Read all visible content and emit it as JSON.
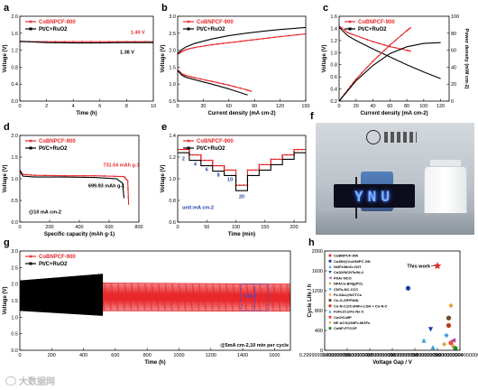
{
  "panels": [
    {
      "id": "a",
      "letter": "a",
      "type": "line",
      "xlabel": "Time (h)",
      "ylabel": "Voltage (V)",
      "xlim": [
        0,
        10
      ],
      "ylim": [
        0,
        2.0
      ],
      "xticks": [
        0,
        2,
        4,
        6,
        8,
        10
      ],
      "yticks": [
        0.0,
        0.4,
        0.8,
        1.2,
        1.6,
        2.0
      ],
      "legend": [
        "CoBNPCF-900",
        "Pt/C+RuO2"
      ],
      "series": [
        {
          "name": "CoBNPCF-900",
          "color": "#e8282b",
          "x": [
            0,
            2,
            4,
            6,
            8,
            10
          ],
          "y": [
            1.4,
            1.4,
            1.4,
            1.4,
            1.4,
            1.4
          ]
        },
        {
          "name": "Pt/C+RuO2",
          "color": "#000000",
          "x": [
            0,
            2,
            4,
            6,
            8,
            10
          ],
          "y": [
            1.41,
            1.38,
            1.37,
            1.37,
            1.38,
            1.38
          ]
        }
      ],
      "annotations": [
        {
          "text": "1.40 V",
          "color": "#e8282b",
          "x": 8.3,
          "y": 1.58
        },
        {
          "text": "1.38 V",
          "color": "#000000",
          "x": 7.5,
          "y": 1.12
        }
      ]
    },
    {
      "id": "b",
      "letter": "b",
      "type": "line",
      "xlabel": "Current density (mA cm-2)",
      "ylabel": "Voltage (V)",
      "xlim": [
        0,
        150
      ],
      "ylim": [
        0.5,
        3.0
      ],
      "xticks": [
        0,
        30,
        60,
        90,
        120,
        150
      ],
      "yticks": [
        0.5,
        1.0,
        1.5,
        2.0,
        2.5,
        3.0
      ],
      "legend": [
        "CoBNPCF-900",
        "Pt/C+RuO2"
      ],
      "series": [
        {
          "name": "CoBNPCF-900 charge",
          "color": "#e8282b",
          "x": [
            0,
            5,
            10,
            20,
            40,
            60,
            80,
            100,
            120,
            150
          ],
          "y": [
            1.88,
            1.96,
            2.02,
            2.08,
            2.16,
            2.22,
            2.28,
            2.34,
            2.4,
            2.48
          ]
        },
        {
          "name": "Pt/C+RuO2 charge",
          "color": "#000000",
          "x": [
            0,
            5,
            10,
            20,
            40,
            60,
            80,
            100,
            120,
            150
          ],
          "y": [
            1.9,
            2.02,
            2.1,
            2.2,
            2.33,
            2.43,
            2.5,
            2.56,
            2.61,
            2.67
          ]
        },
        {
          "name": "CoBNPCF-900 discharge",
          "color": "#e8282b",
          "x": [
            0,
            5,
            10,
            20,
            40,
            60,
            80,
            87
          ],
          "y": [
            1.42,
            1.3,
            1.25,
            1.19,
            1.08,
            0.97,
            0.84,
            0.78
          ]
        },
        {
          "name": "Pt/C+RuO2 discharge",
          "color": "#000000",
          "x": [
            0,
            5,
            10,
            20,
            40,
            60,
            82
          ],
          "y": [
            1.4,
            1.26,
            1.2,
            1.13,
            1.0,
            0.86,
            0.68
          ]
        }
      ]
    },
    {
      "id": "c",
      "letter": "c",
      "type": "line",
      "xlabel": "Current density (mA cm-2)",
      "ylabel": "Voltage (V)",
      "ylabel2": "Power density (mW cm-2)",
      "xlim": [
        0,
        130
      ],
      "ylim": [
        0.2,
        1.6
      ],
      "ylim2": [
        0,
        100
      ],
      "xticks": [
        0,
        20,
        40,
        60,
        80,
        100,
        120
      ],
      "yticks": [
        0.2,
        0.4,
        0.6,
        0.8,
        1.0,
        1.2,
        1.4,
        1.6
      ],
      "yticks2": [
        0,
        20,
        40,
        60,
        80,
        100
      ],
      "legend": [
        "CoBNPCF-900",
        "Pt/C+RuO2"
      ],
      "series": [
        {
          "name": "CoBNPCF-900 voltage",
          "axis": "left",
          "color": "#e8282b",
          "x": [
            0,
            10,
            20,
            40,
            60,
            80,
            85
          ],
          "y": [
            1.44,
            1.33,
            1.28,
            1.18,
            1.1,
            1.04,
            1.02
          ]
        },
        {
          "name": "Pt/C+RuO2 voltage",
          "axis": "left",
          "color": "#000000",
          "x": [
            0,
            10,
            20,
            40,
            60,
            80,
            100,
            120
          ],
          "y": [
            1.42,
            1.28,
            1.2,
            1.06,
            0.93,
            0.8,
            0.68,
            0.57
          ]
        },
        {
          "name": "CoBNPCF-900 power",
          "axis": "right",
          "color": "#e8282b",
          "x": [
            0,
            10,
            20,
            40,
            60,
            80,
            85
          ],
          "y": [
            0,
            13,
            26,
            47,
            66,
            83,
            87
          ]
        },
        {
          "name": "Pt/C+RuO2 power",
          "axis": "right",
          "color": "#000000",
          "x": [
            0,
            10,
            20,
            40,
            60,
            80,
            100,
            120
          ],
          "y": [
            0,
            12,
            24,
            42,
            56,
            64,
            68,
            69
          ]
        }
      ]
    },
    {
      "id": "d",
      "letter": "d",
      "type": "line",
      "xlabel": "Specific capacity (mAh g-1)",
      "ylabel": "Voltage (V)",
      "xlim": [
        0,
        800
      ],
      "ylim": [
        0.0,
        2.0
      ],
      "xticks": [
        0,
        200,
        400,
        600,
        800
      ],
      "yticks": [
        0.0,
        0.5,
        1.0,
        1.5,
        2.0
      ],
      "legend": [
        "CoBNPCF-900",
        "Pt/C+RuO2"
      ],
      "series": [
        {
          "name": "CoBNPCF-900",
          "color": "#e8282b",
          "x": [
            0,
            20,
            100,
            300,
            500,
            700,
            725,
            731
          ],
          "y": [
            1.2,
            1.1,
            1.08,
            1.07,
            1.07,
            1.05,
            0.95,
            0.4
          ]
        },
        {
          "name": "Pt/C+RuO2",
          "color": "#000000",
          "x": [
            0,
            20,
            100,
            300,
            500,
            650,
            690,
            700
          ],
          "y": [
            1.18,
            1.06,
            1.04,
            1.04,
            1.03,
            1.0,
            0.9,
            0.55
          ]
        }
      ],
      "annotations": [
        {
          "text": "731.54 mAh g-1",
          "color": "#e8282b",
          "x": 560,
          "y": 1.28
        },
        {
          "text": "699.93 mAh g-1",
          "color": "#000000",
          "x": 460,
          "y": 0.8
        },
        {
          "text": "@10 mA cm-2",
          "color": "#000000",
          "x": 60,
          "y": 0.2
        }
      ]
    },
    {
      "id": "e",
      "letter": "e",
      "type": "line",
      "xlabel": "Time (min)",
      "ylabel": "Voltage (V)",
      "xlim": [
        0,
        220
      ],
      "ylim": [
        0.6,
        1.4
      ],
      "xticks": [
        0,
        50,
        100,
        150,
        200
      ],
      "yticks": [
        0.6,
        0.8,
        1.0,
        1.2,
        1.4
      ],
      "legend": [
        "CoBNPCF-900",
        "Pt/C+RuO2"
      ],
      "unit_label": "unit:mA cm-2",
      "step_labels": [
        "2",
        "4",
        "6",
        "8",
        "10",
        "20"
      ],
      "series": [
        {
          "name": "CoBNPCF-900",
          "color": "#e8282b",
          "x": [
            0,
            20,
            20,
            40,
            40,
            60,
            60,
            80,
            80,
            100,
            100,
            120,
            120,
            140,
            140,
            160,
            160,
            180,
            180,
            200,
            200,
            220
          ],
          "y": [
            1.27,
            1.27,
            1.22,
            1.22,
            1.17,
            1.17,
            1.12,
            1.12,
            1.08,
            1.08,
            0.94,
            0.94,
            1.08,
            1.08,
            1.13,
            1.13,
            1.18,
            1.18,
            1.22,
            1.22,
            1.27,
            1.27
          ]
        },
        {
          "name": "Pt/C+RuO2",
          "color": "#000000",
          "x": [
            0,
            20,
            20,
            40,
            40,
            60,
            60,
            80,
            80,
            100,
            100,
            120,
            120,
            140,
            140,
            160,
            160,
            180,
            180,
            200,
            200,
            220
          ],
          "y": [
            1.24,
            1.24,
            1.17,
            1.17,
            1.12,
            1.12,
            1.07,
            1.07,
            1.03,
            1.03,
            0.89,
            0.89,
            1.03,
            1.03,
            1.08,
            1.08,
            1.13,
            1.13,
            1.18,
            1.18,
            1.24,
            1.24
          ]
        }
      ]
    },
    {
      "id": "g",
      "letter": "g",
      "type": "line",
      "xlabel": "Time (h)",
      "ylabel": "Voltage (V)",
      "xlim": [
        0,
        1700
      ],
      "ylim": [
        0.0,
        3.0
      ],
      "xticks": [
        0,
        200,
        400,
        600,
        800,
        1000,
        1200,
        1400,
        1600
      ],
      "yticks": [
        0.0,
        0.5,
        1.0,
        1.5,
        2.0,
        2.5,
        3.0
      ],
      "legend": [
        "CoBNPCF-900",
        "Pt/C+RuO2"
      ],
      "condition": "@5mA cm-2,10 min per cycle",
      "inset_label": "0.80 V",
      "series": [
        {
          "name": "CoBNPCF-900 charge",
          "color": "#e8282b",
          "x": [
            0,
            1700
          ],
          "y": [
            2.05,
            2.0
          ]
        },
        {
          "name": "CoBNPCF-900 discharge",
          "color": "#e8282b",
          "x": [
            0,
            1700
          ],
          "y": [
            1.2,
            1.18
          ]
        },
        {
          "name": "Pt/C+RuO2 charge",
          "color": "#000000",
          "x": [
            0,
            520
          ],
          "y": [
            2.1,
            2.3
          ]
        },
        {
          "name": "Pt/C+RuO2 discharge",
          "color": "#000000",
          "x": [
            0,
            520
          ],
          "y": [
            1.2,
            1.05
          ]
        }
      ]
    },
    {
      "id": "h",
      "letter": "h",
      "type": "scatter",
      "xlabel": "Voltage Gap / V",
      "ylabel": "Cycle Life / h",
      "xlim": [
        0.3,
        0.9
      ],
      "ylim": [
        0,
        2000
      ],
      "xticks": [
        0.3,
        0.4,
        0.5,
        0.6,
        0.7,
        0.8,
        0.9
      ],
      "yticks": [
        0,
        400,
        800,
        1200,
        1600,
        2000
      ],
      "callout": "This work",
      "points": [
        {
          "name": "CoBNPCF-900",
          "x": 0.8,
          "y": 1700,
          "color": "#e8282b",
          "marker": "star"
        },
        {
          "name": "Co3Ni@CoON/PC GN",
          "x": 0.67,
          "y": 1250,
          "color": "#1f3ea8",
          "marker": "circle"
        },
        {
          "name": "Ni3Fe/MnO-CNT",
          "x": 0.74,
          "y": 200,
          "color": "#3aa0d8",
          "marker": "triangle"
        },
        {
          "name": "CoS2/NCNTs/Ni-2",
          "x": 0.77,
          "y": 420,
          "color": "#1f3ea8",
          "marker": "triangle-down"
        },
        {
          "name": "Pt/Ar-NCO",
          "x": 0.87,
          "y": 200,
          "color": "#b43aa8",
          "marker": "triangle-left"
        },
        {
          "name": "NFACo-Bi4g(PO)",
          "x": 0.86,
          "y": 900,
          "color": "#e8a03a",
          "marker": "diamond"
        },
        {
          "name": "CNTs-NC-CCC",
          "x": 0.84,
          "y": 300,
          "color": "#3aa0d8",
          "marker": "diamond"
        },
        {
          "name": "Fe-SAs@NCTCs",
          "x": 0.83,
          "y": 120,
          "color": "#e8a03a",
          "marker": "diamond"
        },
        {
          "name": "Co-O-ZIF/PANI",
          "x": 0.85,
          "y": 650,
          "color": "#6e4a2a",
          "marker": "circle"
        },
        {
          "name": "Co-N-C@CoNiFe-LDH + Co-N-C",
          "x": 0.85,
          "y": 500,
          "color": "#c23a1a",
          "marker": "circle"
        },
        {
          "name": "FeFe2C@Fe-Nx-C",
          "x": 0.78,
          "y": 60,
          "color": "#3aa0d8",
          "marker": "triangle"
        },
        {
          "name": "CoO/Co5P",
          "x": 0.86,
          "y": 150,
          "color": "#e84a3a",
          "marker": "circle"
        },
        {
          "name": "NF-ACS@NiFe-MOFs",
          "x": 0.87,
          "y": 80,
          "color": "#e8a03a",
          "marker": "diamond"
        },
        {
          "name": "CoNP-PTCOF",
          "x": 0.88,
          "y": 40,
          "color": "#2a8a3a",
          "marker": "circle"
        }
      ]
    }
  ],
  "photo": {
    "letter": "f",
    "led_text": "YNU"
  },
  "watermark": "大数据网"
}
